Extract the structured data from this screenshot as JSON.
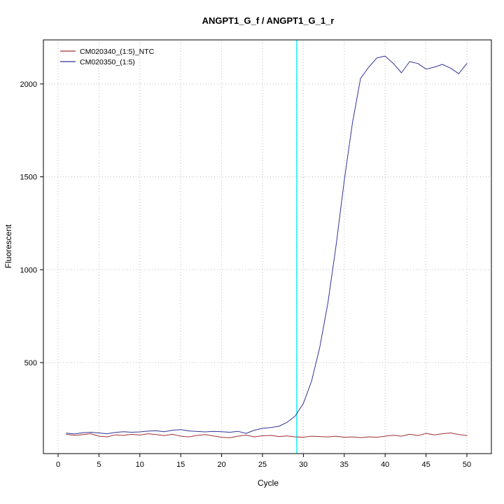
{
  "chart_data": {
    "type": "line",
    "title": "ANGPT1_G_f / ANGPT1_G_1_r",
    "xlabel": "Cycle",
    "ylabel": "Fluorescent",
    "xlim": [
      -1.8,
      53.0
    ],
    "ylim": [
      10,
      2237
    ],
    "x_ticks": [
      0,
      5,
      10,
      15,
      20,
      25,
      30,
      35,
      40,
      45,
      50
    ],
    "y_ticks": [
      500,
      1000,
      1500,
      2000
    ],
    "grid": {
      "on": true,
      "style": "dotted",
      "color": "#bdbdbd"
    },
    "legend_position": "top-left",
    "frame_color": "#000000",
    "background": "#ffffff",
    "threshold_line": {
      "x": 29.2,
      "color": "#00eeee",
      "orientation": "vertical"
    },
    "x": [
      1,
      2,
      3,
      4,
      5,
      6,
      7,
      8,
      9,
      10,
      11,
      12,
      13,
      14,
      15,
      16,
      17,
      18,
      19,
      20,
      21,
      22,
      23,
      24,
      25,
      26,
      27,
      28,
      29,
      30,
      31,
      32,
      33,
      34,
      35,
      36,
      37,
      38,
      39,
      40,
      41,
      42,
      43,
      44,
      45,
      46,
      47,
      48,
      49,
      50
    ],
    "series": [
      {
        "name": "CM020340_(1:5)_NTC",
        "color": "#a03033",
        "values": [
          114,
          108,
          112,
          117,
          104,
          100,
          111,
          108,
          114,
          110,
          117,
          112,
          107,
          114,
          104,
          100,
          108,
          112,
          105,
          98,
          95,
          104,
          110,
          100,
          106,
          108,
          102,
          105,
          100,
          98,
          104,
          102,
          100,
          104,
          98,
          100,
          96,
          100,
          98,
          104,
          109,
          104,
          114,
          107,
          119,
          111,
          117,
          121,
          113,
          107
        ]
      },
      {
        "name": "CM020350_(1:5)",
        "color": "#333399",
        "values": [
          120,
          116,
          122,
          125,
          121,
          117,
          124,
          128,
          125,
          127,
          131,
          133,
          128,
          136,
          139,
          132,
          129,
          127,
          130,
          128,
          125,
          130,
          119,
          136,
          146,
          150,
          157,
          178,
          212,
          280,
          400,
          580,
          820,
          1130,
          1480,
          1790,
          2030,
          2090,
          2140,
          2150,
          2110,
          2060,
          2120,
          2110,
          2080,
          2090,
          2105,
          2085,
          2055,
          2110
        ]
      }
    ]
  }
}
